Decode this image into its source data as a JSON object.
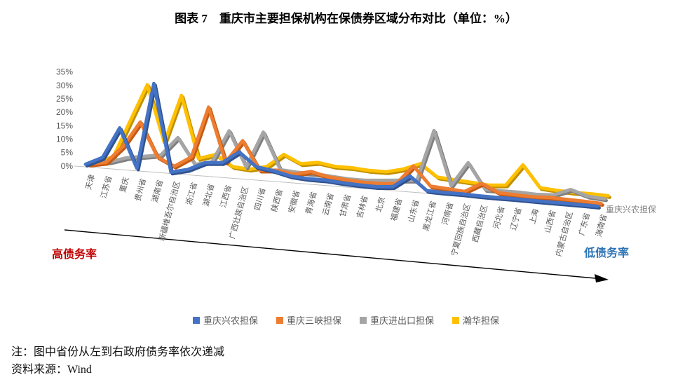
{
  "title": "图表 7　重庆市主要担保机构在保债券区域分布对比（单位：%）",
  "chart_data": {
    "type": "line",
    "style": "3d-line-perspective",
    "unit": "%",
    "title": "重庆市主要担保机构在保债券区域分布对比",
    "categories": [
      "天津",
      "江苏省",
      "重庆",
      "贵州省",
      "湖南省",
      "新疆维吾尔自治区",
      "浙江省",
      "湖北省",
      "江西省",
      "广西壮族自治区",
      "四川省",
      "陕西省",
      "安徽省",
      "青海省",
      "云南省",
      "甘肃省",
      "吉林省",
      "北京",
      "福建省",
      "山东省",
      "黑龙江省",
      "河南省",
      "宁夏回族自治区",
      "西藏自治区",
      "河北省",
      "辽宁省",
      "上海",
      "山西省",
      "内蒙古自治区",
      "广东省",
      "海南省"
    ],
    "series": [
      {
        "name": "重庆兴农担保",
        "color": "#4472C4",
        "shade": "#2F528F",
        "values": [
          1,
          4,
          15.5,
          1,
          33,
          0.5,
          2,
          5,
          5.5,
          10,
          5,
          4,
          2.5,
          2,
          2,
          1.5,
          1.2,
          1,
          1.5,
          6,
          1,
          0.8,
          0.8,
          0.6,
          0.5,
          0.5,
          0.4,
          0.3,
          0.3,
          0.2,
          0.1
        ]
      },
      {
        "name": "重庆三峡担保",
        "color": "#ED7D31",
        "shade": "#C55A11",
        "values": [
          0.3,
          1.5,
          8,
          17.5,
          5,
          2,
          6,
          25,
          5,
          13.5,
          3,
          3.5,
          2.5,
          4,
          2.5,
          2,
          1.5,
          1.5,
          2,
          9,
          2,
          1.5,
          1,
          4.5,
          1.5,
          1.2,
          1,
          1.2,
          1,
          0.8,
          0.5
        ]
      },
      {
        "name": "重庆进出口担保",
        "color": "#A5A5A5",
        "shade": "#7F7F7F",
        "values": [
          0.2,
          1,
          3,
          4,
          5,
          12,
          2.5,
          4,
          16,
          3,
          16.5,
          3,
          2.5,
          2.5,
          2,
          1.5,
          1.5,
          2,
          2.5,
          3,
          22,
          2,
          11,
          1.5,
          1.5,
          1.5,
          1.2,
          1.5,
          4,
          2,
          1.5
        ]
      },
      {
        "name": "瀚华担保",
        "color": "#FFC000",
        "shade": "#BF8F00",
        "values": [
          0.3,
          2,
          16,
          30,
          9,
          27,
          4,
          6,
          2,
          1.5,
          3,
          8,
          5,
          6,
          5,
          5,
          4.5,
          4.5,
          6,
          8.5,
          4,
          3.5,
          3,
          2.5,
          3,
          11,
          3,
          2.5,
          2.2,
          2.2,
          2
        ]
      }
    ],
    "y_axis": {
      "min": 0,
      "max": 35,
      "step": 5,
      "ticks": [
        "0%",
        "5%",
        "10%",
        "15%",
        "20%",
        "25%",
        "30%",
        "35%"
      ]
    },
    "series_axis_label": "重庆兴农担保",
    "legend_position": "bottom",
    "grid": false
  },
  "annotations": {
    "left": {
      "text": "高债务率",
      "color": "#C00000"
    },
    "right": {
      "text": "低债务率",
      "color": "#2E74B5"
    },
    "arrow_direction": "left-high-to-right-low"
  },
  "notes": {
    "note": "注：图中省份从左到右政府债务率依次递减",
    "source": "资料来源：Wind"
  }
}
